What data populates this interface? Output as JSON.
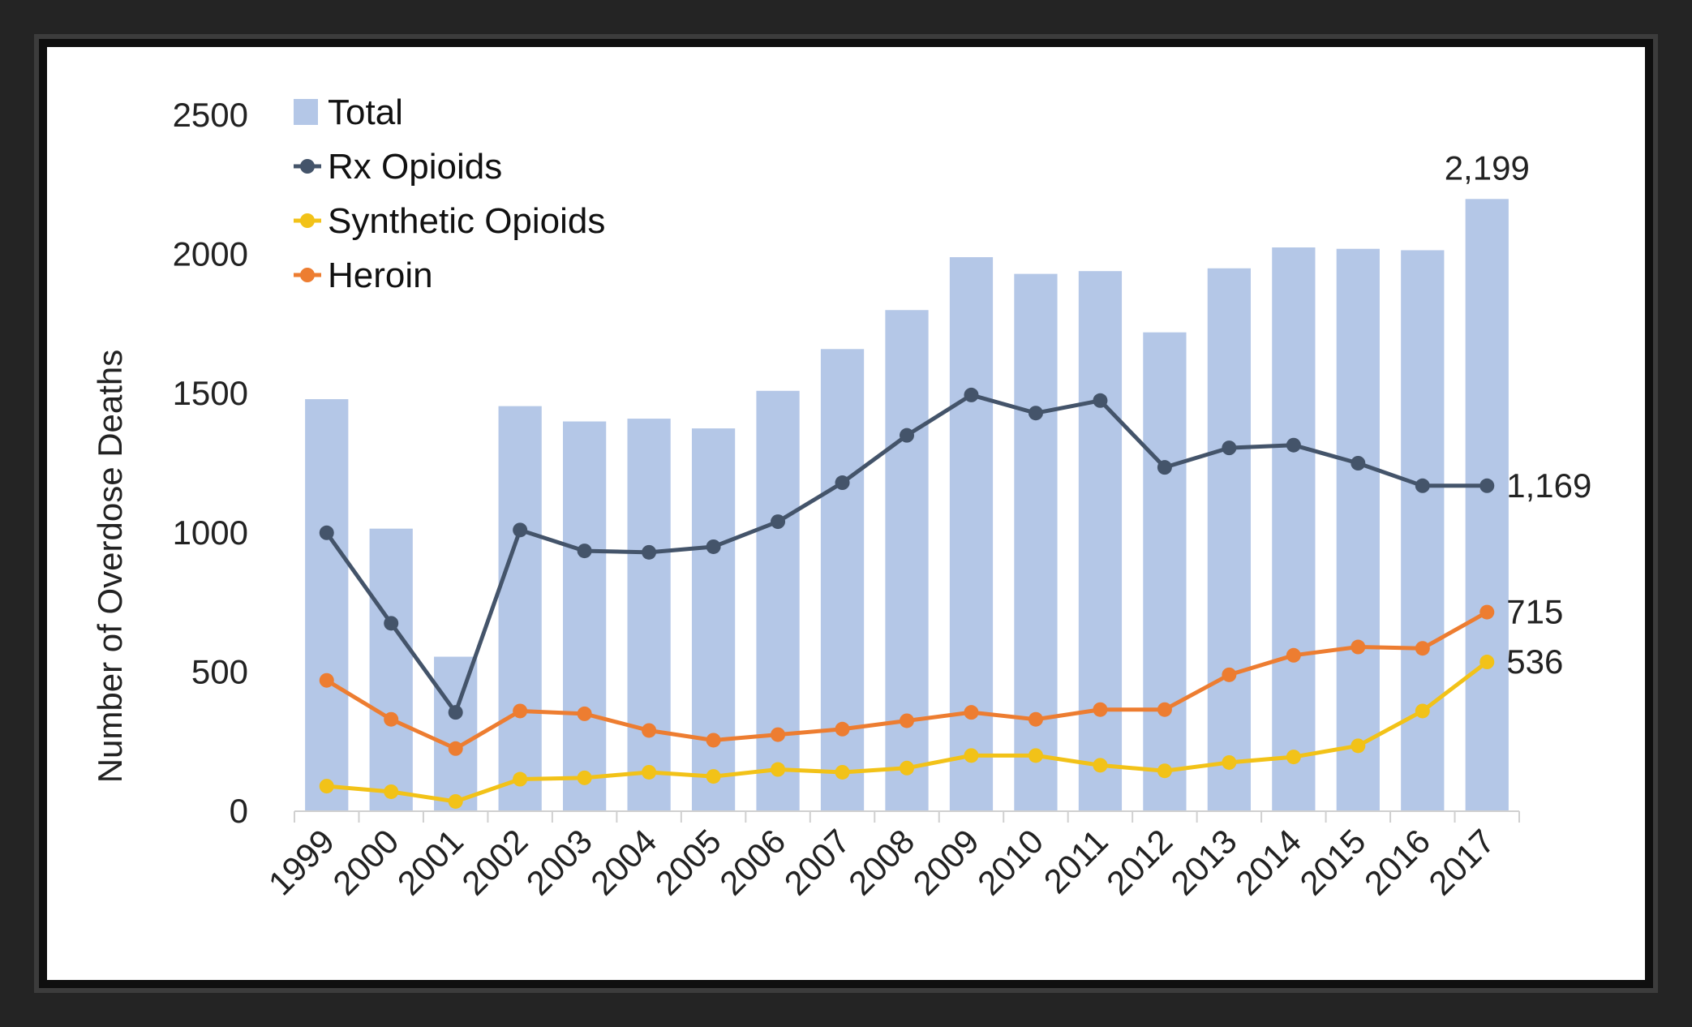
{
  "chart_data": {
    "type": "bar",
    "categories": [
      "1999",
      "2000",
      "2001",
      "2002",
      "2003",
      "2004",
      "2005",
      "2006",
      "2007",
      "2008",
      "2009",
      "2010",
      "2011",
      "2012",
      "2013",
      "2014",
      "2015",
      "2016",
      "2017"
    ],
    "series": [
      {
        "name": "Total",
        "kind": "bar",
        "color": "#b4c7e7",
        "values": [
          1480,
          1015,
          555,
          1455,
          1400,
          1410,
          1375,
          1510,
          1660,
          1800,
          1990,
          1930,
          1940,
          1720,
          1950,
          2025,
          2020,
          2015,
          2199
        ]
      },
      {
        "name": "Rx Opioids",
        "kind": "line",
        "color": "#44546a",
        "values": [
          1000,
          675,
          355,
          1010,
          935,
          930,
          950,
          1040,
          1180,
          1350,
          1495,
          1430,
          1475,
          1235,
          1305,
          1315,
          1250,
          1169,
          1169
        ]
      },
      {
        "name": "Synthetic Opioids",
        "kind": "line",
        "color": "#f2c218",
        "values": [
          90,
          70,
          35,
          115,
          120,
          140,
          125,
          150,
          140,
          155,
          200,
          200,
          165,
          145,
          175,
          195,
          235,
          360,
          536
        ]
      },
      {
        "name": "Heroin",
        "kind": "line",
        "color": "#ed7d31",
        "values": [
          470,
          330,
          225,
          360,
          350,
          290,
          255,
          275,
          295,
          325,
          355,
          330,
          365,
          365,
          490,
          560,
          590,
          585,
          715
        ]
      }
    ],
    "ylabel": "Number of Overdose Deaths",
    "xlabel": "",
    "ylim": [
      0,
      2500
    ],
    "yticks": [
      "0",
      "500",
      "1000",
      "1500",
      "2000",
      "2500"
    ],
    "grid": false,
    "legend_position": "top-left",
    "annotations": [
      {
        "series": "Total",
        "category": "2017",
        "text": "2,199"
      },
      {
        "series": "Rx Opioids",
        "category": "2017",
        "text": "1,169"
      },
      {
        "series": "Heroin",
        "category": "2017",
        "text": "715"
      },
      {
        "series": "Synthetic Opioids",
        "category": "2017",
        "text": "536"
      }
    ]
  }
}
